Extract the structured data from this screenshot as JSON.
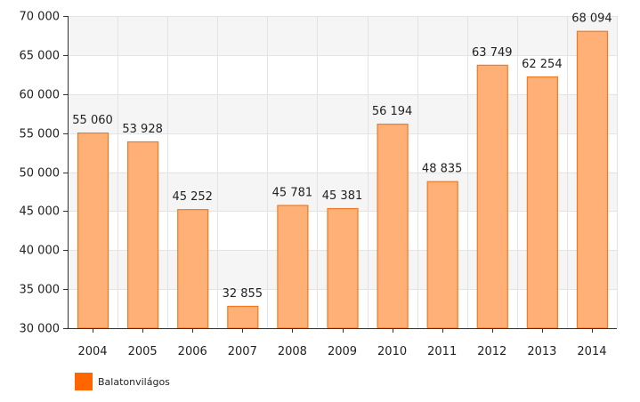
{
  "chart_data": {
    "type": "bar",
    "categories": [
      "2004",
      "2005",
      "2006",
      "2007",
      "2008",
      "2009",
      "2010",
      "2011",
      "2012",
      "2013",
      "2014"
    ],
    "series": [
      {
        "name": "Balatonvilágos",
        "values": [
          55060,
          53928,
          45252,
          32855,
          45781,
          45381,
          56194,
          48835,
          63749,
          62254,
          68094
        ],
        "labels": [
          "55 060",
          "53 928",
          "45 252",
          "32 855",
          "45 781",
          "45 381",
          "56 194",
          "48 835",
          "63 749",
          "62 254",
          "68 094"
        ],
        "fill": "#ffb077",
        "stroke": "#f07a22"
      }
    ],
    "ylim": [
      30000,
      70000
    ],
    "yticks": [
      30000,
      35000,
      40000,
      45000,
      50000,
      55000,
      60000,
      65000,
      70000
    ],
    "ytick_labels": [
      "30 000",
      "35 000",
      "40 000",
      "45 000",
      "50 000",
      "55 000",
      "60 000",
      "65 000",
      "70 000"
    ],
    "grid": true,
    "legend_position": "bottom-left",
    "legend_color": "#ff6600",
    "band_color": "#f5f5f5",
    "title": "",
    "xlabel": "",
    "ylabel": ""
  }
}
